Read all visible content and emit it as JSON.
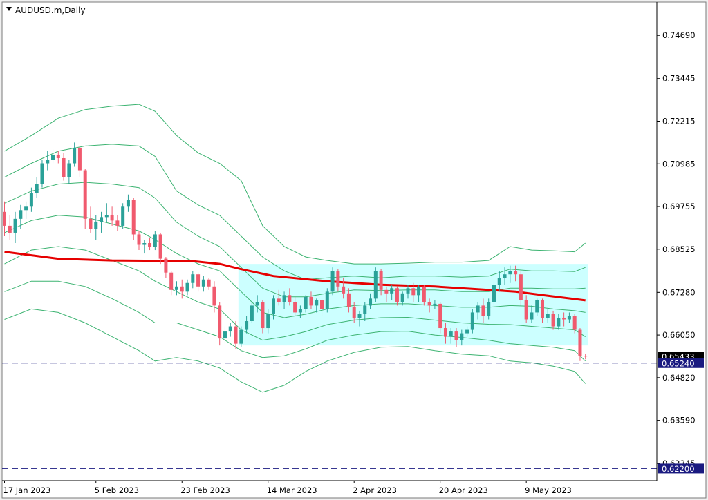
{
  "chart_data": {
    "type": "candlestick",
    "symbol_title": "AUDUSD.m,Daily",
    "y_tick_labels": [
      "0.74690",
      "0.73445",
      "0.72215",
      "0.70985",
      "0.69755",
      "0.68525",
      "0.67280",
      "0.66050",
      "0.64820",
      "0.63590",
      "0.62345"
    ],
    "x_tick_labels": [
      "17 Jan 2023",
      "5 Feb 2023",
      "23 Feb 2023",
      "14 Mar 2023",
      "2 Apr 2023",
      "20 Apr 2023",
      "9 May 2023"
    ],
    "ylim": [
      0.6185,
      0.7565
    ],
    "candles": [
      [
        0.696,
        0.699,
        0.689,
        0.692
      ],
      [
        0.692,
        0.695,
        0.688,
        0.69
      ],
      [
        0.69,
        0.696,
        0.687,
        0.694
      ],
      [
        0.694,
        0.698,
        0.691,
        0.6965
      ],
      [
        0.6965,
        0.699,
        0.694,
        0.6975
      ],
      [
        0.6975,
        0.703,
        0.696,
        0.7015
      ],
      [
        0.7015,
        0.706,
        0.7,
        0.704
      ],
      [
        0.704,
        0.711,
        0.703,
        0.71
      ],
      [
        0.71,
        0.7135,
        0.708,
        0.711
      ],
      [
        0.711,
        0.714,
        0.71,
        0.7125
      ],
      [
        0.7125,
        0.7135,
        0.71,
        0.7115
      ],
      [
        0.7115,
        0.713,
        0.705,
        0.706
      ],
      [
        0.706,
        0.711,
        0.704,
        0.71
      ],
      [
        0.71,
        0.716,
        0.709,
        0.7145
      ],
      [
        0.7145,
        0.715,
        0.706,
        0.708
      ],
      [
        0.708,
        0.7085,
        0.691,
        0.694
      ],
      [
        0.694,
        0.6975,
        0.69,
        0.691
      ],
      [
        0.691,
        0.695,
        0.688,
        0.693
      ],
      [
        0.693,
        0.696,
        0.69,
        0.6945
      ],
      [
        0.6945,
        0.6985,
        0.693,
        0.695
      ],
      [
        0.695,
        0.6975,
        0.692,
        0.6935
      ],
      [
        0.6935,
        0.695,
        0.6905,
        0.692
      ],
      [
        0.692,
        0.6985,
        0.691,
        0.6975
      ],
      [
        0.6975,
        0.701,
        0.696,
        0.6995
      ],
      [
        0.6995,
        0.7,
        0.688,
        0.6895
      ],
      [
        0.6895,
        0.6905,
        0.685,
        0.6865
      ],
      [
        0.6865,
        0.688,
        0.684,
        0.687
      ],
      [
        0.687,
        0.6885,
        0.685,
        0.686
      ],
      [
        0.686,
        0.6905,
        0.685,
        0.6895
      ],
      [
        0.6895,
        0.69,
        0.681,
        0.6825
      ],
      [
        0.6825,
        0.683,
        0.677,
        0.6785
      ],
      [
        0.6785,
        0.679,
        0.672,
        0.6735
      ],
      [
        0.6735,
        0.676,
        0.672,
        0.6745
      ],
      [
        0.6745,
        0.6765,
        0.671,
        0.673
      ],
      [
        0.673,
        0.6765,
        0.672,
        0.6755
      ],
      [
        0.6755,
        0.679,
        0.674,
        0.678
      ],
      [
        0.678,
        0.6785,
        0.673,
        0.6745
      ],
      [
        0.6745,
        0.6775,
        0.673,
        0.6765
      ],
      [
        0.6765,
        0.677,
        0.6735,
        0.6745
      ],
      [
        0.6745,
        0.676,
        0.667,
        0.669
      ],
      [
        0.669,
        0.67,
        0.6575,
        0.6595
      ],
      [
        0.6595,
        0.663,
        0.658,
        0.6615
      ],
      [
        0.6615,
        0.664,
        0.66,
        0.663
      ],
      [
        0.663,
        0.6645,
        0.6565,
        0.658
      ],
      [
        0.658,
        0.663,
        0.657,
        0.662
      ],
      [
        0.662,
        0.666,
        0.661,
        0.6645
      ],
      [
        0.6645,
        0.67,
        0.664,
        0.669
      ],
      [
        0.669,
        0.672,
        0.667,
        0.67
      ],
      [
        0.67,
        0.6705,
        0.661,
        0.6625
      ],
      [
        0.6625,
        0.668,
        0.661,
        0.6665
      ],
      [
        0.6665,
        0.672,
        0.665,
        0.671
      ],
      [
        0.671,
        0.6735,
        0.669,
        0.67
      ],
      [
        0.67,
        0.673,
        0.668,
        0.672
      ],
      [
        0.672,
        0.674,
        0.669,
        0.67
      ],
      [
        0.67,
        0.6715,
        0.666,
        0.667
      ],
      [
        0.667,
        0.669,
        0.6655,
        0.668
      ],
      [
        0.668,
        0.672,
        0.667,
        0.6715
      ],
      [
        0.6715,
        0.673,
        0.668,
        0.669
      ],
      [
        0.669,
        0.671,
        0.667,
        0.6705
      ],
      [
        0.6705,
        0.671,
        0.666,
        0.668
      ],
      [
        0.668,
        0.674,
        0.667,
        0.673
      ],
      [
        0.673,
        0.68,
        0.672,
        0.679
      ],
      [
        0.679,
        0.6795,
        0.673,
        0.6745
      ],
      [
        0.6745,
        0.677,
        0.671,
        0.6725
      ],
      [
        0.6725,
        0.674,
        0.667,
        0.6685
      ],
      [
        0.6685,
        0.67,
        0.664,
        0.6655
      ],
      [
        0.6655,
        0.6675,
        0.663,
        0.6665
      ],
      [
        0.6665,
        0.67,
        0.6645,
        0.669
      ],
      [
        0.669,
        0.6725,
        0.668,
        0.671
      ],
      [
        0.671,
        0.68,
        0.67,
        0.679
      ],
      [
        0.679,
        0.6795,
        0.672,
        0.6735
      ],
      [
        0.6735,
        0.6745,
        0.67,
        0.6725
      ],
      [
        0.6725,
        0.675,
        0.6705,
        0.674
      ],
      [
        0.674,
        0.6745,
        0.669,
        0.67
      ],
      [
        0.67,
        0.673,
        0.669,
        0.6725
      ],
      [
        0.6725,
        0.675,
        0.671,
        0.674
      ],
      [
        0.674,
        0.6755,
        0.67,
        0.672
      ],
      [
        0.672,
        0.675,
        0.67,
        0.6745
      ],
      [
        0.6745,
        0.675,
        0.669,
        0.67
      ],
      [
        0.67,
        0.671,
        0.667,
        0.669
      ],
      [
        0.669,
        0.6705,
        0.668,
        0.6695
      ],
      [
        0.6695,
        0.67,
        0.661,
        0.6625
      ],
      [
        0.6625,
        0.664,
        0.658,
        0.66
      ],
      [
        0.66,
        0.6625,
        0.658,
        0.6615
      ],
      [
        0.6615,
        0.6625,
        0.657,
        0.659
      ],
      [
        0.659,
        0.662,
        0.6575,
        0.661
      ],
      [
        0.661,
        0.663,
        0.66,
        0.662
      ],
      [
        0.662,
        0.668,
        0.661,
        0.667
      ],
      [
        0.667,
        0.67,
        0.665,
        0.669
      ],
      [
        0.669,
        0.671,
        0.664,
        0.666
      ],
      [
        0.666,
        0.671,
        0.665,
        0.67
      ],
      [
        0.67,
        0.676,
        0.669,
        0.675
      ],
      [
        0.675,
        0.679,
        0.673,
        0.677
      ],
      [
        0.677,
        0.68,
        0.675,
        0.678
      ],
      [
        0.678,
        0.6805,
        0.6755,
        0.679
      ],
      [
        0.679,
        0.6805,
        0.676,
        0.678
      ],
      [
        0.678,
        0.679,
        0.669,
        0.6705
      ],
      [
        0.6705,
        0.672,
        0.664,
        0.665
      ],
      [
        0.665,
        0.669,
        0.664,
        0.667
      ],
      [
        0.667,
        0.671,
        0.666,
        0.6705
      ],
      [
        0.6705,
        0.671,
        0.664,
        0.6655
      ],
      [
        0.6655,
        0.668,
        0.664,
        0.6665
      ],
      [
        0.6665,
        0.6675,
        0.662,
        0.663
      ],
      [
        0.663,
        0.6665,
        0.662,
        0.6655
      ],
      [
        0.6655,
        0.667,
        0.663,
        0.665
      ],
      [
        0.665,
        0.667,
        0.664,
        0.666
      ],
      [
        0.666,
        0.6665,
        0.661,
        0.662
      ],
      [
        0.662,
        0.6625,
        0.653,
        0.6545
      ],
      [
        0.6545,
        0.655,
        0.6535,
        0.6543
      ]
    ],
    "ma200": {
      "color": "#e60000",
      "points": [
        [
          0,
          0.6845
        ],
        [
          10,
          0.6825
        ],
        [
          20,
          0.682
        ],
        [
          35,
          0.6818
        ],
        [
          40,
          0.681
        ],
        [
          44,
          0.6795
        ],
        [
          50,
          0.6775
        ],
        [
          60,
          0.676
        ],
        [
          70,
          0.675
        ],
        [
          80,
          0.6745
        ],
        [
          90,
          0.6735
        ],
        [
          95,
          0.673
        ],
        [
          100,
          0.672
        ],
        [
          108,
          0.6705
        ]
      ]
    },
    "bands": {
      "color": "#3cb371",
      "upper3": [
        [
          0,
          0.7135
        ],
        [
          5,
          0.718
        ],
        [
          10,
          0.723
        ],
        [
          15,
          0.7255
        ],
        [
          20,
          0.7265
        ],
        [
          25,
          0.727
        ],
        [
          28,
          0.725
        ],
        [
          32,
          0.718
        ],
        [
          36,
          0.713
        ],
        [
          40,
          0.71
        ],
        [
          44,
          0.705
        ],
        [
          48,
          0.692
        ],
        [
          52,
          0.686
        ],
        [
          56,
          0.683
        ],
        [
          60,
          0.682
        ],
        [
          65,
          0.681
        ],
        [
          70,
          0.681
        ],
        [
          75,
          0.6812
        ],
        [
          80,
          0.6815
        ],
        [
          85,
          0.6815
        ],
        [
          90,
          0.682
        ],
        [
          92,
          0.684
        ],
        [
          94,
          0.686
        ],
        [
          98,
          0.685
        ],
        [
          102,
          0.6848
        ],
        [
          106,
          0.6845
        ],
        [
          108,
          0.687
        ]
      ],
      "upper2": [
        [
          0,
          0.706
        ],
        [
          5,
          0.71
        ],
        [
          10,
          0.7135
        ],
        [
          15,
          0.715
        ],
        [
          20,
          0.7155
        ],
        [
          25,
          0.715
        ],
        [
          28,
          0.712
        ],
        [
          32,
          0.702
        ],
        [
          36,
          0.698
        ],
        [
          40,
          0.695
        ],
        [
          44,
          0.689
        ],
        [
          48,
          0.683
        ],
        [
          52,
          0.679
        ],
        [
          56,
          0.6765
        ],
        [
          60,
          0.677
        ],
        [
          65,
          0.6775
        ],
        [
          70,
          0.677
        ],
        [
          75,
          0.6775
        ],
        [
          80,
          0.6775
        ],
        [
          85,
          0.6772
        ],
        [
          90,
          0.6775
        ],
        [
          94,
          0.6795
        ],
        [
          98,
          0.679
        ],
        [
          102,
          0.679
        ],
        [
          106,
          0.6788
        ],
        [
          108,
          0.68
        ]
      ],
      "upper1": [
        [
          0,
          0.6985
        ],
        [
          5,
          0.702
        ],
        [
          10,
          0.704
        ],
        [
          15,
          0.7045
        ],
        [
          20,
          0.704
        ],
        [
          25,
          0.703
        ],
        [
          28,
          0.7
        ],
        [
          32,
          0.693
        ],
        [
          36,
          0.689
        ],
        [
          40,
          0.686
        ],
        [
          44,
          0.68
        ],
        [
          48,
          0.674
        ],
        [
          52,
          0.6715
        ],
        [
          56,
          0.6715
        ],
        [
          60,
          0.6725
        ],
        [
          65,
          0.6735
        ],
        [
          70,
          0.6733
        ],
        [
          75,
          0.6735
        ],
        [
          80,
          0.6735
        ],
        [
          85,
          0.673
        ],
        [
          90,
          0.673
        ],
        [
          94,
          0.674
        ],
        [
          98,
          0.674
        ],
        [
          102,
          0.6738
        ],
        [
          106,
          0.6738
        ],
        [
          108,
          0.674
        ]
      ],
      "mid": [
        [
          0,
          0.69
        ],
        [
          5,
          0.6935
        ],
        [
          10,
          0.695
        ],
        [
          15,
          0.6945
        ],
        [
          20,
          0.6925
        ],
        [
          25,
          0.6905
        ],
        [
          28,
          0.688
        ],
        [
          32,
          0.684
        ],
        [
          36,
          0.681
        ],
        [
          40,
          0.679
        ],
        [
          44,
          0.673
        ],
        [
          48,
          0.667
        ],
        [
          52,
          0.6655
        ],
        [
          56,
          0.6665
        ],
        [
          60,
          0.668
        ],
        [
          65,
          0.669
        ],
        [
          70,
          0.6695
        ],
        [
          75,
          0.6695
        ],
        [
          80,
          0.669
        ],
        [
          85,
          0.6685
        ],
        [
          90,
          0.6685
        ],
        [
          94,
          0.669
        ],
        [
          98,
          0.6688
        ],
        [
          102,
          0.668
        ],
        [
          106,
          0.6675
        ],
        [
          108,
          0.667
        ]
      ],
      "lower1": [
        [
          0,
          0.681
        ],
        [
          5,
          0.685
        ],
        [
          10,
          0.686
        ],
        [
          15,
          0.685
        ],
        [
          20,
          0.682
        ],
        [
          25,
          0.679
        ],
        [
          28,
          0.676
        ],
        [
          32,
          0.673
        ],
        [
          36,
          0.67
        ],
        [
          40,
          0.668
        ],
        [
          44,
          0.662
        ],
        [
          48,
          0.659
        ],
        [
          52,
          0.66
        ],
        [
          56,
          0.6615
        ],
        [
          60,
          0.6635
        ],
        [
          65,
          0.6648
        ],
        [
          70,
          0.6655
        ],
        [
          75,
          0.6656
        ],
        [
          80,
          0.6648
        ],
        [
          85,
          0.664
        ],
        [
          90,
          0.6636
        ],
        [
          94,
          0.6635
        ],
        [
          98,
          0.663
        ],
        [
          102,
          0.6625
        ],
        [
          106,
          0.662
        ],
        [
          108,
          0.66
        ]
      ],
      "lower2": [
        [
          0,
          0.673
        ],
        [
          5,
          0.676
        ],
        [
          10,
          0.676
        ],
        [
          15,
          0.6745
        ],
        [
          20,
          0.671
        ],
        [
          25,
          0.667
        ],
        [
          28,
          0.664
        ],
        [
          32,
          0.664
        ],
        [
          36,
          0.662
        ],
        [
          40,
          0.66
        ],
        [
          44,
          0.656
        ],
        [
          48,
          0.654
        ],
        [
          52,
          0.6545
        ],
        [
          56,
          0.6565
        ],
        [
          60,
          0.659
        ],
        [
          65,
          0.6605
        ],
        [
          70,
          0.6615
        ],
        [
          75,
          0.6616
        ],
        [
          80,
          0.6605
        ],
        [
          85,
          0.6598
        ],
        [
          90,
          0.659
        ],
        [
          94,
          0.658
        ],
        [
          98,
          0.6575
        ],
        [
          102,
          0.657
        ],
        [
          106,
          0.656
        ],
        [
          108,
          0.653
        ]
      ],
      "lower3": [
        [
          0,
          0.665
        ],
        [
          5,
          0.668
        ],
        [
          10,
          0.667
        ],
        [
          15,
          0.664
        ],
        [
          20,
          0.66
        ],
        [
          25,
          0.656
        ],
        [
          28,
          0.653
        ],
        [
          32,
          0.654
        ],
        [
          36,
          0.653
        ],
        [
          40,
          0.651
        ],
        [
          44,
          0.647
        ],
        [
          48,
          0.644
        ],
        [
          52,
          0.646
        ],
        [
          56,
          0.65
        ],
        [
          60,
          0.653
        ],
        [
          65,
          0.6555
        ],
        [
          70,
          0.657
        ],
        [
          75,
          0.6572
        ],
        [
          80,
          0.656
        ],
        [
          85,
          0.655
        ],
        [
          90,
          0.6545
        ],
        [
          94,
          0.653
        ],
        [
          98,
          0.6525
        ],
        [
          102,
          0.6515
        ],
        [
          106,
          0.65
        ],
        [
          108,
          0.6465
        ]
      ]
    },
    "range_box": {
      "x_start": 44,
      "x_end": 108,
      "y_low": 0.6575,
      "y_high": 0.681,
      "color": "#ccffff"
    },
    "h_lines": [
      {
        "price": 0.6524,
        "color": "#1a1a80",
        "label": "0.65240"
      },
      {
        "price": 0.622,
        "color": "#1a1a80",
        "label": "0.62200"
      }
    ],
    "current_price": {
      "value": 0.65433,
      "label": "0.65433"
    },
    "colors": {
      "bull": "#2aa198",
      "bear": "#f05a6e",
      "axis": "#000000",
      "bg": "#ffffff",
      "tag_black": "#000000",
      "tag_navy": "#1a1a80"
    }
  }
}
